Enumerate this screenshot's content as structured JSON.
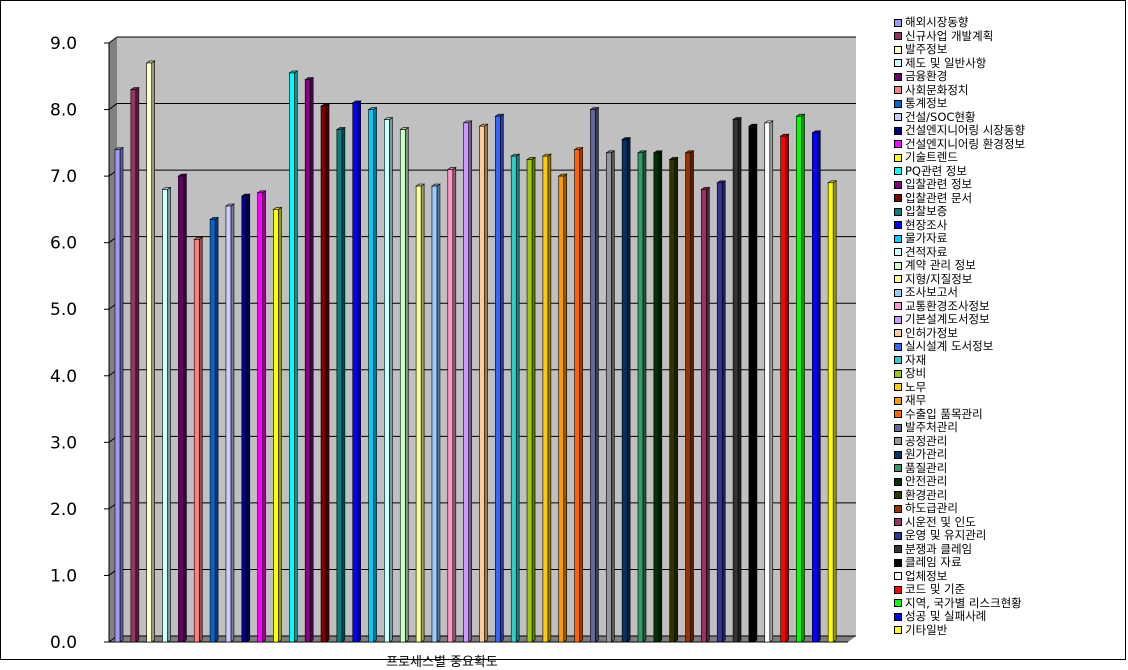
{
  "chart_data": {
    "type": "bar",
    "xlabel": "프로세스별 중요확도",
    "ylim": [
      0,
      9
    ],
    "yticks": [
      "0.0",
      "1.0",
      "2.0",
      "3.0",
      "4.0",
      "5.0",
      "6.0",
      "7.0",
      "8.0",
      "9.0"
    ],
    "grid": true,
    "legend_position": "right",
    "plot_background": "#c0c0c0",
    "series": [
      {
        "name": "해외시장동향",
        "value": 7.4,
        "color": "#9999ff"
      },
      {
        "name": "신규사업 개발계획",
        "value": 8.3,
        "color": "#993366"
      },
      {
        "name": "발주정보",
        "value": 8.7,
        "color": "#ffffcc"
      },
      {
        "name": "제도 및 일반사항",
        "value": 6.8,
        "color": "#ccffff"
      },
      {
        "name": "금융환경",
        "value": 7.0,
        "color": "#660066"
      },
      {
        "name": "사회문화정치",
        "value": 6.05,
        "color": "#ff8080"
      },
      {
        "name": "통계정보",
        "value": 6.35,
        "color": "#0066cc"
      },
      {
        "name": "건설/SOC현황",
        "value": 6.55,
        "color": "#ccccff"
      },
      {
        "name": "건설엔지니어링 시장동향",
        "value": 6.7,
        "color": "#000080"
      },
      {
        "name": "건설엔지니어링 환경정보",
        "value": 6.75,
        "color": "#ff00ff"
      },
      {
        "name": "기술트렌드",
        "value": 6.5,
        "color": "#ffff00"
      },
      {
        "name": "PQ관련 정보",
        "value": 8.55,
        "color": "#00ffff"
      },
      {
        "name": "입찰관련 정보",
        "value": 8.45,
        "color": "#800080"
      },
      {
        "name": "입찰관련 문서",
        "value": 8.05,
        "color": "#800000"
      },
      {
        "name": "입찰보증",
        "value": 7.7,
        "color": "#008080"
      },
      {
        "name": "현장조사",
        "value": 8.1,
        "color": "#0000ff"
      },
      {
        "name": "물가자료",
        "value": 8.0,
        "color": "#00ccff"
      },
      {
        "name": "견적자료",
        "value": 7.85,
        "color": "#ccffff"
      },
      {
        "name": "계약 관리 정보",
        "value": 7.7,
        "color": "#ccffcc"
      },
      {
        "name": "지형/지질정보",
        "value": 6.85,
        "color": "#ffff99"
      },
      {
        "name": "조사보고서",
        "value": 6.85,
        "color": "#99ccff"
      },
      {
        "name": "교통환경조사정보",
        "value": 7.1,
        "color": "#ff99cc"
      },
      {
        "name": "기본설계도서정보",
        "value": 7.8,
        "color": "#cc99ff"
      },
      {
        "name": "인허가정보",
        "value": 7.75,
        "color": "#ffcc99"
      },
      {
        "name": "실시설계 도서정보",
        "value": 7.9,
        "color": "#3366ff"
      },
      {
        "name": "자재",
        "value": 7.3,
        "color": "#33cccc"
      },
      {
        "name": "장비",
        "value": 7.25,
        "color": "#99cc00"
      },
      {
        "name": "노무",
        "value": 7.3,
        "color": "#ffcc00"
      },
      {
        "name": "재무",
        "value": 7.0,
        "color": "#ff9900"
      },
      {
        "name": "수출입 품목관리",
        "value": 7.4,
        "color": "#ff6600"
      },
      {
        "name": "발주처관리",
        "value": 8.0,
        "color": "#666699"
      },
      {
        "name": "공정관리",
        "value": 7.35,
        "color": "#969696"
      },
      {
        "name": "원가관리",
        "value": 7.55,
        "color": "#003366"
      },
      {
        "name": "품질관리",
        "value": 7.35,
        "color": "#339966"
      },
      {
        "name": "안전관리",
        "value": 7.35,
        "color": "#003300"
      },
      {
        "name": "환경관리",
        "value": 7.25,
        "color": "#333300"
      },
      {
        "name": "하도급관리",
        "value": 7.35,
        "color": "#993300"
      },
      {
        "name": "시운전 및 인도",
        "value": 6.8,
        "color": "#993366"
      },
      {
        "name": "운영 및 유지관리",
        "value": 6.9,
        "color": "#333399"
      },
      {
        "name": "분쟁과 클레임",
        "value": 7.85,
        "color": "#333333"
      },
      {
        "name": "클레임 자료",
        "value": 7.75,
        "color": "#000000"
      },
      {
        "name": "업체정보",
        "value": 7.8,
        "color": "#ffffff"
      },
      {
        "name": "코드 및 기준",
        "value": 7.6,
        "color": "#ff0000"
      },
      {
        "name": "지역, 국가별 리스크현황",
        "value": 7.9,
        "color": "#00ff00"
      },
      {
        "name": "성공 및 실패사례",
        "value": 7.65,
        "color": "#0000ff"
      },
      {
        "name": "기타일반",
        "value": 6.9,
        "color": "#ffff00"
      }
    ]
  }
}
